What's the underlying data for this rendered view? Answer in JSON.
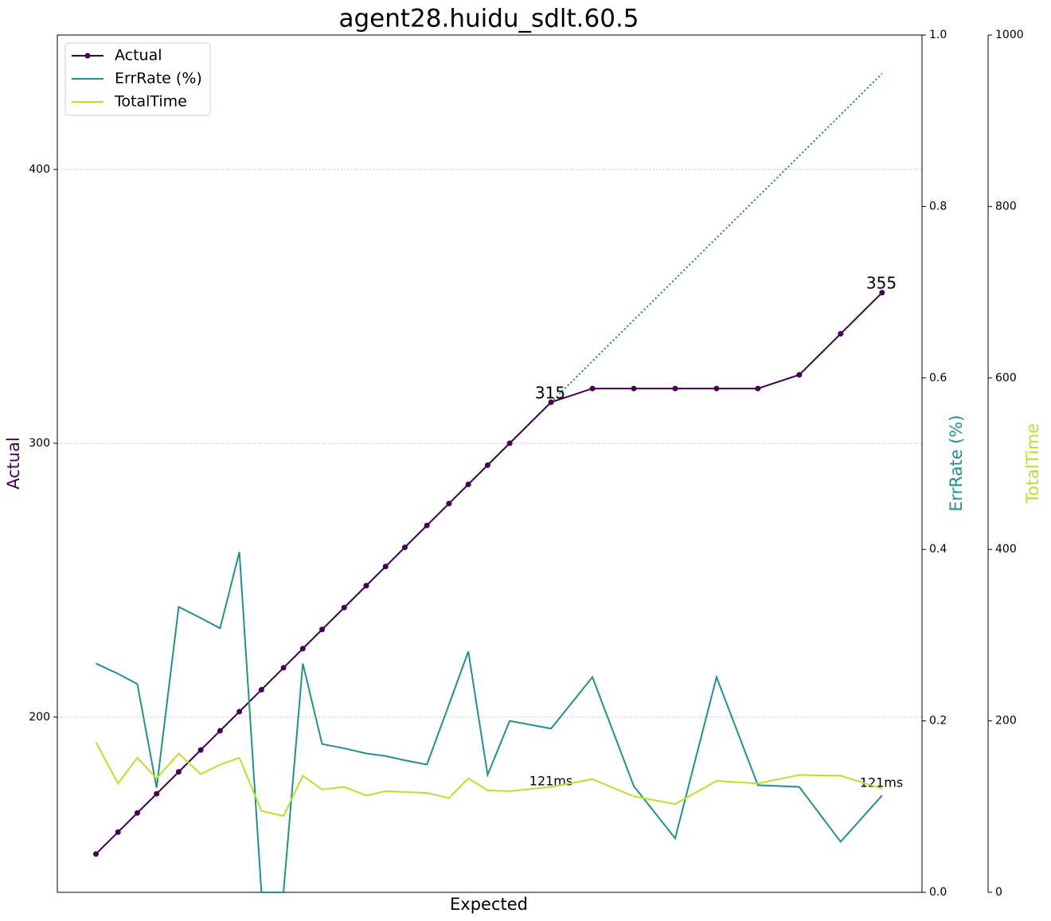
{
  "chart_data": {
    "type": "line",
    "title": "agent28.huidu_sdlt.60.5",
    "x_label": "Expected",
    "y_label": "Actual",
    "y2_label": "ErrRate (%)",
    "y3_label": "TotalTime",
    "x": [
      150,
      158,
      165,
      172,
      180,
      188,
      195,
      202,
      210,
      218,
      225,
      232,
      240,
      248,
      255,
      262,
      270,
      278,
      285,
      292,
      300,
      315,
      330,
      345,
      360,
      375,
      390,
      405,
      420,
      435
    ],
    "xlim": [
      136,
      449.5
    ],
    "ylim": [
      136,
      449.1
    ],
    "yticks": [
      200,
      300,
      400
    ],
    "y2lim": [
      0,
      1
    ],
    "y2ticks": [
      {
        "value": 0,
        "label": "0.0"
      },
      {
        "value": 0.2,
        "label": "0.2"
      },
      {
        "value": 0.4,
        "label": "0.4"
      },
      {
        "value": 0.6,
        "label": "0.6"
      },
      {
        "value": 0.8,
        "label": "0.8"
      },
      {
        "value": 1,
        "label": "1.0"
      }
    ],
    "y3lim": [
      0,
      1000
    ],
    "y3ticks": [
      0,
      200,
      400,
      600,
      800,
      1000
    ],
    "grid": true,
    "legend": "upper left",
    "expected_color": "#1f77b4",
    "series": [
      {
        "name": "Actual",
        "color": "#440154",
        "axis": "y",
        "markers": true,
        "values": [
          150,
          158,
          165,
          172,
          180,
          188,
          195,
          202,
          210,
          218,
          225,
          232,
          240,
          248,
          255,
          262,
          270,
          278,
          285,
          292,
          300,
          315,
          320,
          320,
          320,
          320,
          320,
          325,
          340,
          355
        ]
      },
      {
        "name": "ErrRate (%)",
        "color": "#21918c",
        "axis": "y2",
        "values": [
          0.267,
          0.255,
          0.243,
          0.122,
          0.333,
          0.32,
          0.308,
          0.397,
          0,
          0,
          0.267,
          0.173,
          0.168,
          0.162,
          0.159,
          0.154,
          0.149,
          0.219,
          0.281,
          0.137,
          0.2,
          0.191,
          0.251,
          0.124,
          0.063,
          0.251,
          0.125,
          0.123,
          0.059,
          0.113
        ]
      },
      {
        "name": "TotalTime",
        "color": "#bddf26",
        "axis": "y3",
        "values": [
          175,
          127,
          157,
          133,
          162,
          138,
          149,
          157,
          95,
          89,
          136,
          120,
          123,
          113,
          118,
          117,
          116,
          110,
          133,
          119,
          118,
          123,
          132,
          112,
          103,
          130,
          127,
          137,
          136,
          121
        ]
      }
    ],
    "annotations": [
      "315",
      "355",
      "121ms",
      "121ms"
    ]
  }
}
